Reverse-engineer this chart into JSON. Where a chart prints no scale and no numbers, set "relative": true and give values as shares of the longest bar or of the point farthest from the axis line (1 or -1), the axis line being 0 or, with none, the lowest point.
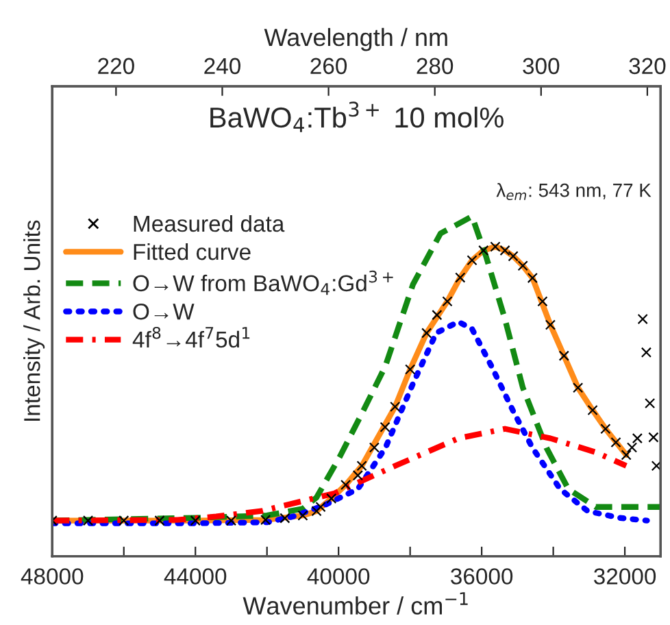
{
  "chart_data": {
    "type": "line",
    "title": "BaWO$_{4}$:Tb$^{3+}$ 10 mol%",
    "xlabel": "Wavenumber / cm$^{−1}$",
    "ylabel": "Intensity / Arb. Units",
    "x2label": "Wavelength / nm",
    "annotations": [
      "λ$_{em}$: 543 nm, 77 K"
    ],
    "relative": true,
    "legend": "top left",
    "grid": false,
    "xlim": [
      48000,
      31000
    ],
    "xticks": [
      48000,
      {
        "value": 46000,
        "label": null
      },
      44000,
      {
        "value": 42000,
        "label": null
      },
      40000,
      {
        "value": 38000,
        "label": null
      },
      36000,
      {
        "value": 34000,
        "label": null
      },
      32000
    ],
    "x2lim": [
      208,
      322.5
    ],
    "x2ticks": [
      220,
      240,
      260,
      280,
      300,
      320
    ],
    "series": [
      {
        "name": "Measured data",
        "type": "scatter",
        "marker": "cross",
        "color": "#000000",
        "x": [
          48000,
          47000,
          46000,
          45000,
          44000,
          43000,
          42040,
          41500,
          41000,
          40615,
          40500,
          40200,
          39800,
          39460,
          39350,
          39000,
          38700,
          38420,
          38000,
          37540,
          37250,
          36960,
          36600,
          36270,
          35950,
          35620,
          35350,
          35120,
          34850,
          34580,
          34300,
          34080,
          33700,
          33310,
          32900,
          32540,
          32250,
          31960,
          31800,
          31650,
          31500,
          31400,
          31300,
          31200,
          31115
        ],
        "values": [
          0.105,
          0.105,
          0.105,
          0.105,
          0.105,
          0.105,
          0.107,
          0.112,
          0.12,
          0.133,
          0.145,
          0.17,
          0.21,
          0.238,
          0.266,
          0.32,
          0.38,
          0.44,
          0.55,
          0.657,
          0.71,
          0.75,
          0.82,
          0.871,
          0.9,
          0.911,
          0.9,
          0.883,
          0.855,
          0.819,
          0.75,
          0.681,
          0.59,
          0.496,
          0.43,
          0.375,
          0.335,
          0.298,
          0.32,
          0.347,
          0.698,
          0.6,
          0.45,
          0.35,
          0.266
        ]
      },
      {
        "name": "Fitted curve",
        "type": "line",
        "line_style": "solid",
        "marker": "none",
        "color": "#ff8c1a",
        "x": [
          48000,
          44000,
          42040,
          41000,
          40615,
          40200,
          39800,
          39350,
          38900,
          38420,
          38000,
          37540,
          36960,
          36600,
          36270,
          35950,
          35620,
          35350,
          35120,
          34850,
          34580,
          34080,
          33700,
          33310,
          32900,
          32540,
          31960
        ],
        "values": [
          0.105,
          0.105,
          0.107,
          0.12,
          0.133,
          0.17,
          0.21,
          0.266,
          0.35,
          0.44,
          0.55,
          0.657,
          0.75,
          0.82,
          0.871,
          0.9,
          0.911,
          0.9,
          0.883,
          0.855,
          0.819,
          0.681,
          0.59,
          0.496,
          0.43,
          0.375,
          0.298
        ]
      },
      {
        "name": "O→W from BaWO$_{4}$:Gd$^{3+}$",
        "type": "line",
        "line_style": "dashed",
        "marker": "none",
        "color": "#138a13",
        "x": [
          48000,
          44000,
          42000,
          41000,
          40615,
          39960,
          39300,
          38690,
          37920,
          37150,
          36270,
          35880,
          35350,
          34850,
          34190,
          33580,
          32810,
          31000
        ],
        "values": [
          0.105,
          0.113,
          0.12,
          0.14,
          0.173,
          0.294,
          0.43,
          0.56,
          0.8,
          0.95,
          1.0,
          0.883,
          0.698,
          0.496,
          0.319,
          0.198,
          0.145,
          0.145
        ]
      },
      {
        "name": "O→W",
        "type": "line",
        "line_style": "dotted",
        "marker": "none",
        "color": "#0000ff",
        "x": [
          48000,
          44000,
          42000,
          41270,
          40400,
          39460,
          38690,
          37920,
          37270,
          36650,
          36270,
          35730,
          35120,
          34580,
          33810,
          33040,
          32150,
          31380
        ],
        "values": [
          0.097,
          0.097,
          0.1,
          0.117,
          0.15,
          0.198,
          0.319,
          0.508,
          0.657,
          0.69,
          0.669,
          0.56,
          0.427,
          0.319,
          0.198,
          0.133,
          0.113,
          0.105
        ]
      },
      {
        "name": "4f$^{8}$→4f$^{7}$5d$^{1}$",
        "type": "line",
        "line_style": "dashdot",
        "marker": "none",
        "color": "#ff0000",
        "x": [
          48000,
          44500,
          43420,
          42150,
          40120,
          38420,
          36650,
          35350,
          34080,
          32810,
          31960
        ],
        "values": [
          0.105,
          0.107,
          0.117,
          0.133,
          0.185,
          0.266,
          0.347,
          0.375,
          0.347,
          0.306,
          0.266
        ]
      }
    ]
  }
}
